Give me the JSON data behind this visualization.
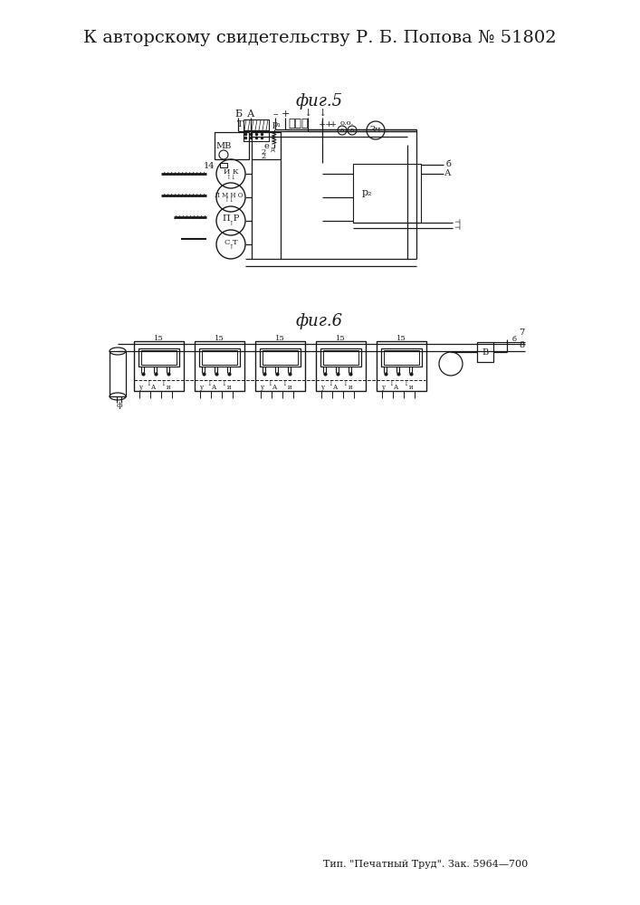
{
  "title": "К авторскому свидетельству Р. Б. Попова № 51802",
  "fig5_label": "фиг.5",
  "fig6_label": "фиг.6",
  "footer": "Тип. \"Печатный Труд\". Зак. 5964—700",
  "bg_color": "#ffffff",
  "line_color": "#1a1a1a",
  "title_fontsize": 14,
  "fig_label_fontsize": 13,
  "small_fontsize": 7,
  "tiny_fontsize": 6
}
